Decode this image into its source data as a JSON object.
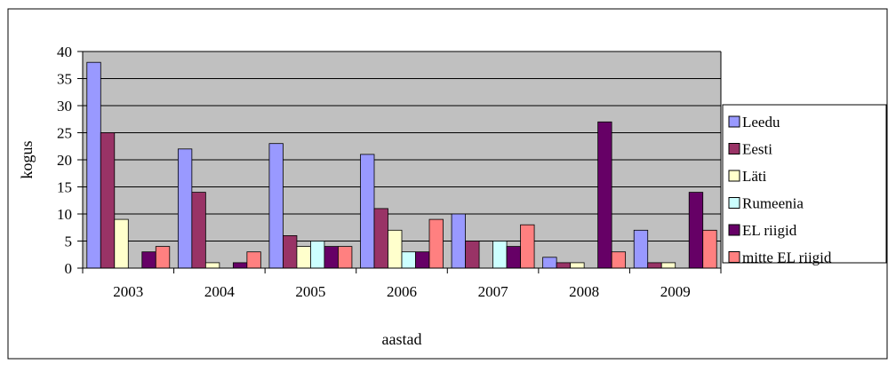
{
  "chart_data": {
    "type": "bar",
    "title": "",
    "xlabel": "aastad",
    "ylabel": "kogus",
    "ylim": [
      0,
      40
    ],
    "yticks": [
      0,
      5,
      10,
      15,
      20,
      25,
      30,
      35,
      40
    ],
    "grid": true,
    "legend_position": "right",
    "categories": [
      "2003",
      "2004",
      "2005",
      "2006",
      "2007",
      "2008",
      "2009"
    ],
    "series": [
      {
        "name": "Leedu",
        "color": "#9999ff",
        "values": [
          38,
          22,
          23,
          21,
          10,
          2,
          7
        ]
      },
      {
        "name": "Eesti",
        "color": "#993366",
        "values": [
          25,
          14,
          6,
          11,
          5,
          1,
          1
        ]
      },
      {
        "name": "Läti",
        "color": "#ffffcc",
        "values": [
          9,
          1,
          4,
          7,
          0,
          1,
          1
        ]
      },
      {
        "name": "Rumeenia",
        "color": "#ccffff",
        "values": [
          0,
          0,
          5,
          3,
          5,
          0,
          0
        ]
      },
      {
        "name": "EL riigid",
        "color": "#660066",
        "values": [
          3,
          1,
          4,
          3,
          4,
          27,
          14
        ]
      },
      {
        "name": "mitte EL riigid",
        "color": "#ff8080",
        "values": [
          4,
          3,
          4,
          9,
          8,
          3,
          7
        ]
      }
    ],
    "plot_background": "#c0c0c0"
  }
}
